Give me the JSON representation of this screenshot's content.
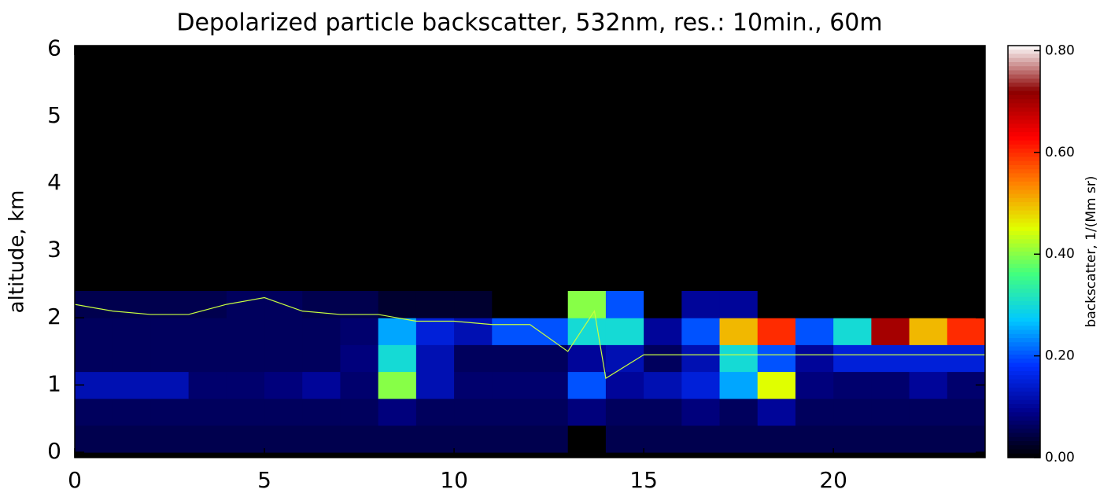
{
  "chart_data": {
    "type": "heatmap",
    "title": "Depolarized particle backscatter, 532nm, res.: 10min., 60m",
    "y_label": "altitude, km",
    "colorbar_label": "backscatter, 1/(Mm sr)",
    "x_edges": [
      0,
      1,
      2,
      3,
      4,
      5,
      6,
      7,
      8,
      9,
      10,
      11,
      12,
      13,
      14,
      15,
      16,
      17,
      18,
      19,
      20,
      21,
      22,
      23,
      24
    ],
    "y_edges": [
      0,
      0.4,
      0.8,
      1.2,
      1.6,
      2.0,
      2.4
    ],
    "z": [
      [
        0.05,
        0.05,
        0.05,
        0.05,
        0.05,
        0.05,
        0.05,
        0.05,
        0.05,
        0.05,
        0.05,
        0.05,
        0.05,
        0,
        0.05,
        0.05,
        0.05,
        0.05,
        0.05,
        0.05,
        0.05,
        0.05,
        0.05,
        0.05
      ],
      [
        0.06,
        0.06,
        0.06,
        0.06,
        0.06,
        0.06,
        0.06,
        0.06,
        0.08,
        0.06,
        0.06,
        0.06,
        0.06,
        0.08,
        0.06,
        0.06,
        0.08,
        0.06,
        0.1,
        0.06,
        0.06,
        0.06,
        0.06,
        0.06
      ],
      [
        0.12,
        0.12,
        0.12,
        0.07,
        0.07,
        0.08,
        0.1,
        0.07,
        0.4,
        0.12,
        0.07,
        0.07,
        0.07,
        0.2,
        0.1,
        0.12,
        0.15,
        0.25,
        0.45,
        0.08,
        0.07,
        0.07,
        0.1,
        0.07
      ],
      [
        0.06,
        0.06,
        0.06,
        0.06,
        0.06,
        0.06,
        0.06,
        0.08,
        0.3,
        0.12,
        0.06,
        0.06,
        0.06,
        0.1,
        0.12,
        0.06,
        0.12,
        0.3,
        0.2,
        0.1,
        0.15,
        0.15,
        0.15,
        0.15
      ],
      [
        0.06,
        0.06,
        0.06,
        0.06,
        0.06,
        0.06,
        0.06,
        0.07,
        0.25,
        0.15,
        0.12,
        0.2,
        0.2,
        0.3,
        0.3,
        0.1,
        0.2,
        0.5,
        0.6,
        0.2,
        0.3,
        0.7,
        0.5,
        0.6
      ],
      [
        0.05,
        0.05,
        0.05,
        0.05,
        0.06,
        0.06,
        0.05,
        0.05,
        0.03,
        0.03,
        0.03,
        0,
        0,
        0.4,
        0.2,
        0,
        0.1,
        0.1,
        0,
        0,
        0,
        0,
        0,
        0
      ]
    ],
    "colormap": [
      "#000000",
      "#00008c",
      "#0030ff",
      "#00c8ff",
      "#40ff80",
      "#e0ff00",
      "#ff8000",
      "#ff0000",
      "#8b0000",
      "#ffffff"
    ],
    "xlim": [
      0,
      24
    ],
    "ylim": [
      -0.08,
      6.05
    ],
    "xticks": [
      0,
      5,
      10,
      15,
      20
    ],
    "yticks": [
      0,
      1,
      2,
      3,
      4,
      5,
      6
    ],
    "clim": [
      0,
      0.81
    ],
    "cticks": [
      {
        "value": 0,
        "label": "0.00"
      },
      {
        "value": 0.2,
        "label": "0.20"
      },
      {
        "value": 0.4,
        "label": "0.40"
      },
      {
        "value": 0.6,
        "label": "0.60"
      },
      {
        "value": 0.8,
        "label": "0.80"
      }
    ],
    "line": {
      "color": "#c8ff40",
      "x": [
        0,
        1,
        2,
        3,
        4,
        5,
        6,
        7,
        8,
        9,
        10,
        11,
        12,
        13,
        13.7,
        14,
        15,
        16,
        17,
        18,
        19,
        20,
        21,
        22,
        23,
        24
      ],
      "values": [
        2.2,
        2.1,
        2.05,
        2.05,
        2.2,
        2.3,
        2.1,
        2.05,
        2.05,
        1.95,
        1.95,
        1.9,
        1.9,
        1.5,
        2.1,
        1.1,
        1.45,
        1.45,
        1.45,
        1.45,
        1.45,
        1.45,
        1.45,
        1.45,
        1.45,
        1.45
      ]
    }
  }
}
